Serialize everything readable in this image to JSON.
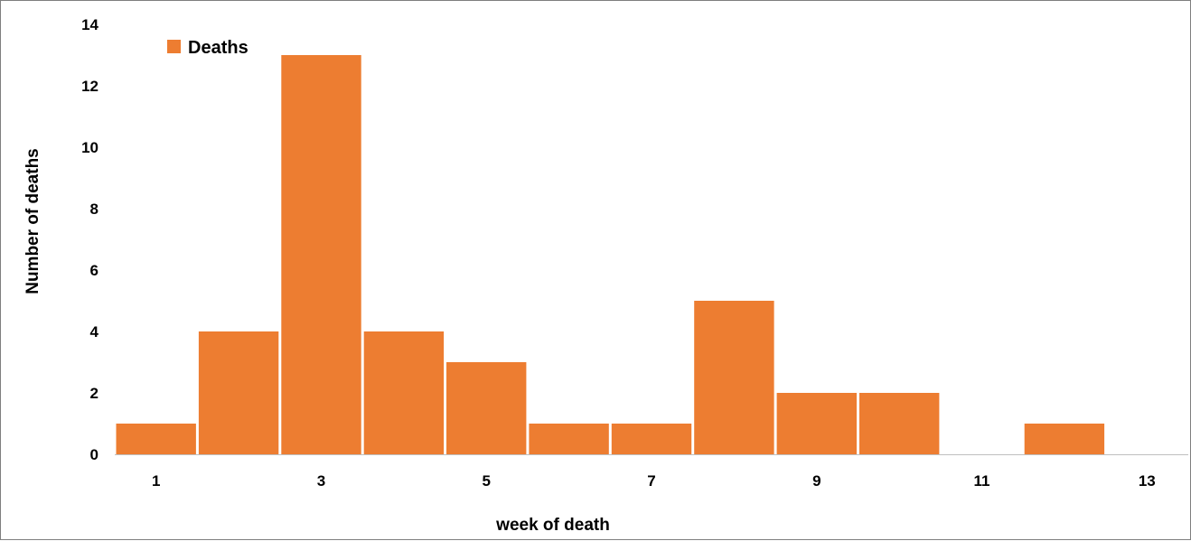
{
  "chart_data": {
    "type": "bar",
    "title": "",
    "xlabel": "week of death",
    "ylabel": "Number of deaths",
    "categories": [
      "1",
      "2",
      "3",
      "4",
      "5",
      "6",
      "7",
      "8",
      "9",
      "10",
      "11",
      "12",
      "13"
    ],
    "x_tick_labels": [
      "1",
      "3",
      "5",
      "7",
      "9",
      "11",
      "13"
    ],
    "y_ticks": [
      0,
      2,
      4,
      6,
      8,
      10,
      12,
      14
    ],
    "ylim": [
      0,
      14
    ],
    "series": [
      {
        "name": "Deaths",
        "values": [
          1,
          4,
          13,
          4,
          3,
          1,
          1,
          5,
          2,
          2,
          0,
          1,
          0
        ],
        "color": "#ED7D31"
      }
    ],
    "legend": {
      "position": "top-left",
      "labels": [
        "Deaths"
      ]
    },
    "grid": false
  },
  "colors": {
    "bar": "#ED7D31",
    "axis": "#bfbfbf",
    "frame": "#7f7f7f"
  }
}
